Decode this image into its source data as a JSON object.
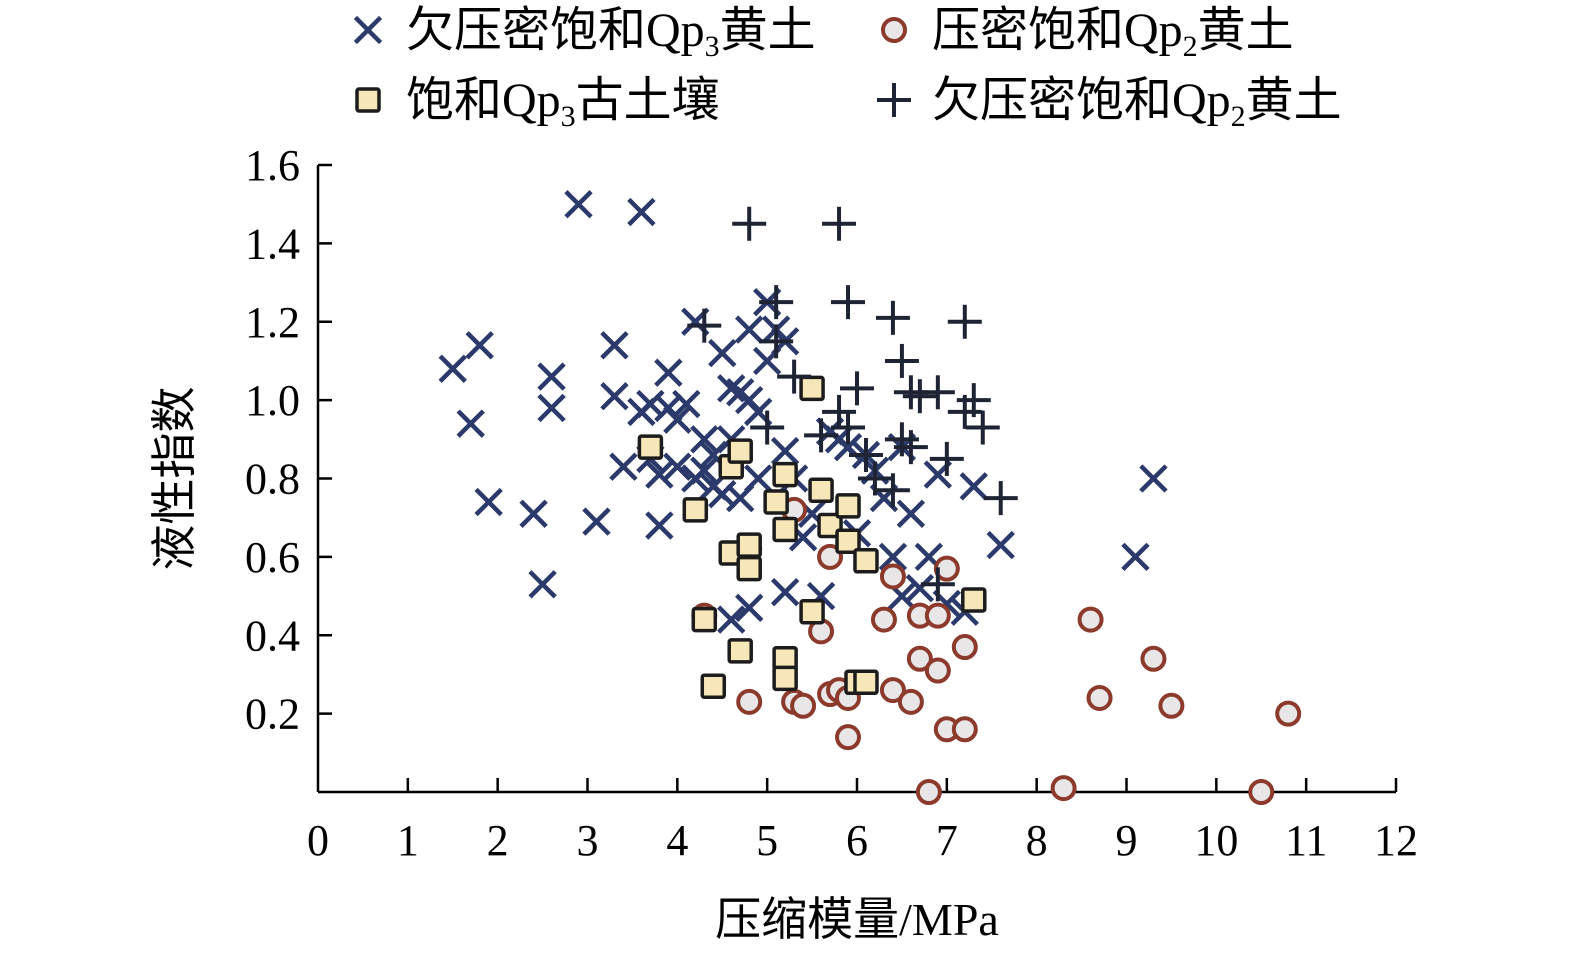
{
  "chart_data": {
    "type": "scatter",
    "xlabel": "压缩模量/MPa",
    "ylabel": "液性指数",
    "xlim": [
      0,
      12
    ],
    "ylim": [
      0,
      1.6
    ],
    "x_ticks": [
      0,
      1,
      2,
      3,
      4,
      5,
      6,
      7,
      8,
      9,
      10,
      11,
      12
    ],
    "y_ticks": [
      0.2,
      0.4,
      0.6,
      0.8,
      1.0,
      1.2,
      1.4,
      1.6
    ],
    "x_tick_labels": [
      "0",
      "1",
      "2",
      "3",
      "4",
      "5",
      "6",
      "7",
      "8",
      "9",
      "10",
      "11",
      "12"
    ],
    "y_tick_labels": [
      "0.2",
      "0.4",
      "0.6",
      "0.8",
      "1.0",
      "1.2",
      "1.4",
      "1.6"
    ],
    "grid": false,
    "legend_position": "top",
    "series": [
      {
        "name": "欠压密饱和Qp3黄土",
        "marker": "x",
        "color": "#2b3a6b",
        "points": [
          [
            1.5,
            1.08
          ],
          [
            1.7,
            0.94
          ],
          [
            1.8,
            1.14
          ],
          [
            1.9,
            0.74
          ],
          [
            2.4,
            0.71
          ],
          [
            2.5,
            0.53
          ],
          [
            2.6,
            1.06
          ],
          [
            2.6,
            0.98
          ],
          [
            2.9,
            1.5
          ],
          [
            3.1,
            0.69
          ],
          [
            3.3,
            1.14
          ],
          [
            3.3,
            1.01
          ],
          [
            3.4,
            0.83
          ],
          [
            3.6,
            1.48
          ],
          [
            3.6,
            0.97
          ],
          [
            3.7,
            0.99
          ],
          [
            3.7,
            0.85
          ],
          [
            3.8,
            0.81
          ],
          [
            3.8,
            0.68
          ],
          [
            3.9,
            1.07
          ],
          [
            3.9,
            0.98
          ],
          [
            4.0,
            0.95
          ],
          [
            4.0,
            0.83
          ],
          [
            4.1,
            0.99
          ],
          [
            4.2,
            1.2
          ],
          [
            4.2,
            0.8
          ],
          [
            4.3,
            0.9
          ],
          [
            4.3,
            0.82
          ],
          [
            4.4,
            0.86
          ],
          [
            4.4,
            0.78
          ],
          [
            4.5,
            1.12
          ],
          [
            4.5,
            0.76
          ],
          [
            4.6,
            1.03
          ],
          [
            4.6,
            0.9
          ],
          [
            4.6,
            0.44
          ],
          [
            4.7,
            1.02
          ],
          [
            4.7,
            0.75
          ],
          [
            4.8,
            1.18
          ],
          [
            4.8,
            1.0
          ],
          [
            4.8,
            0.47
          ],
          [
            4.9,
            0.97
          ],
          [
            4.9,
            0.8
          ],
          [
            5.0,
            1.25
          ],
          [
            5.0,
            1.1
          ],
          [
            5.1,
            1.18
          ],
          [
            5.2,
            1.15
          ],
          [
            5.2,
            0.87
          ],
          [
            5.2,
            0.51
          ],
          [
            5.3,
            0.8
          ],
          [
            5.4,
            0.65
          ],
          [
            5.5,
            0.71
          ],
          [
            5.6,
            0.5
          ],
          [
            5.7,
            0.92
          ],
          [
            5.8,
            0.9
          ],
          [
            5.9,
            0.88
          ],
          [
            6.0,
            0.66
          ],
          [
            6.1,
            0.86
          ],
          [
            6.2,
            0.82
          ],
          [
            6.3,
            0.75
          ],
          [
            6.4,
            0.6
          ],
          [
            6.5,
            0.88
          ],
          [
            6.5,
            0.5
          ],
          [
            6.6,
            0.71
          ],
          [
            6.7,
            0.52
          ],
          [
            6.8,
            0.6
          ],
          [
            6.9,
            0.81
          ],
          [
            7.0,
            0.48
          ],
          [
            7.2,
            0.46
          ],
          [
            7.3,
            0.78
          ],
          [
            7.6,
            0.63
          ],
          [
            9.1,
            0.6
          ],
          [
            9.3,
            0.8
          ]
        ]
      },
      {
        "name": "压密饱和Qp2黄土",
        "marker": "circle",
        "color": "#8b3a2b",
        "points": [
          [
            4.3,
            0.45
          ],
          [
            4.8,
            0.62
          ],
          [
            4.8,
            0.23
          ],
          [
            5.3,
            0.72
          ],
          [
            5.3,
            0.23
          ],
          [
            5.4,
            0.22
          ],
          [
            5.6,
            0.41
          ],
          [
            5.7,
            0.6
          ],
          [
            5.7,
            0.25
          ],
          [
            5.8,
            0.26
          ],
          [
            5.9,
            0.24
          ],
          [
            5.9,
            0.14
          ],
          [
            6.3,
            0.44
          ],
          [
            6.4,
            0.55
          ],
          [
            6.4,
            0.26
          ],
          [
            6.6,
            0.23
          ],
          [
            6.7,
            0.45
          ],
          [
            6.7,
            0.34
          ],
          [
            6.8,
            0.0
          ],
          [
            6.9,
            0.45
          ],
          [
            6.9,
            0.31
          ],
          [
            7.0,
            0.57
          ],
          [
            7.0,
            0.16
          ],
          [
            7.2,
            0.37
          ],
          [
            7.2,
            0.16
          ],
          [
            8.3,
            0.01
          ],
          [
            8.6,
            0.44
          ],
          [
            8.7,
            0.24
          ],
          [
            9.3,
            0.34
          ],
          [
            9.5,
            0.22
          ],
          [
            10.5,
            0.0
          ],
          [
            10.8,
            0.2
          ]
        ]
      },
      {
        "name": "饱和Qp3古土壤",
        "marker": "square",
        "color": "#f6e6b8",
        "points": [
          [
            3.7,
            0.88
          ],
          [
            4.2,
            0.72
          ],
          [
            4.3,
            0.44
          ],
          [
            4.4,
            0.27
          ],
          [
            4.6,
            0.83
          ],
          [
            4.6,
            0.61
          ],
          [
            4.7,
            0.87
          ],
          [
            4.7,
            0.36
          ],
          [
            4.8,
            0.63
          ],
          [
            4.8,
            0.57
          ],
          [
            5.1,
            0.74
          ],
          [
            5.2,
            0.81
          ],
          [
            5.2,
            0.67
          ],
          [
            5.2,
            0.34
          ],
          [
            5.2,
            0.29
          ],
          [
            5.5,
            1.03
          ],
          [
            5.5,
            0.46
          ],
          [
            5.6,
            0.77
          ],
          [
            5.7,
            0.68
          ],
          [
            5.9,
            0.73
          ],
          [
            5.9,
            0.64
          ],
          [
            6.0,
            0.28
          ],
          [
            6.1,
            0.28
          ],
          [
            6.1,
            0.59
          ],
          [
            7.3,
            0.49
          ]
        ]
      },
      {
        "name": "欠压密饱和Qp2黄土",
        "marker": "plus",
        "color": "#1e2433",
        "points": [
          [
            4.3,
            1.19
          ],
          [
            4.8,
            1.45
          ],
          [
            5.0,
            0.93
          ],
          [
            5.1,
            1.25
          ],
          [
            5.1,
            1.15
          ],
          [
            5.3,
            1.06
          ],
          [
            5.6,
            0.91
          ],
          [
            5.8,
            1.45
          ],
          [
            5.8,
            0.97
          ],
          [
            5.9,
            1.25
          ],
          [
            5.9,
            0.93
          ],
          [
            6.0,
            1.03
          ],
          [
            6.1,
            0.86
          ],
          [
            6.2,
            0.8
          ],
          [
            6.4,
            1.21
          ],
          [
            6.4,
            0.77
          ],
          [
            6.5,
            1.1
          ],
          [
            6.5,
            0.9
          ],
          [
            6.6,
            1.02
          ],
          [
            6.6,
            0.88
          ],
          [
            6.7,
            1.01
          ],
          [
            6.9,
            1.02
          ],
          [
            6.9,
            0.53
          ],
          [
            7.0,
            0.85
          ],
          [
            7.2,
            1.2
          ],
          [
            7.2,
            0.97
          ],
          [
            7.3,
            1.0
          ],
          [
            7.4,
            0.93
          ],
          [
            7.6,
            0.75
          ]
        ]
      }
    ]
  },
  "legend": {
    "items": [
      {
        "prefix": "欠压密饱和Qp",
        "sub": "3",
        "suffix": "黄土",
        "marker": "x",
        "color": "#2b3a6b"
      },
      {
        "prefix": "压密饱和Qp",
        "sub": "2",
        "suffix": "黄土",
        "marker": "circle",
        "color": "#8b3a2b"
      },
      {
        "prefix": "饱和Qp",
        "sub": "3",
        "suffix": "古土壤",
        "marker": "square",
        "color": "#f6e6b8"
      },
      {
        "prefix": "欠压密饱和Qp",
        "sub": "2",
        "suffix": "黄土",
        "marker": "plus",
        "color": "#1e2433"
      }
    ]
  }
}
